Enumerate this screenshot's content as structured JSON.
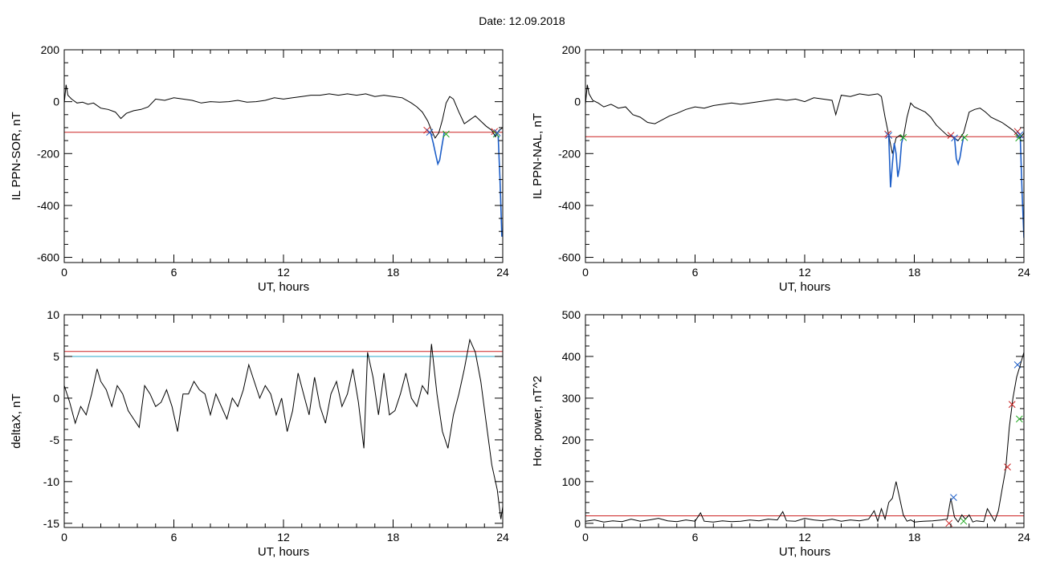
{
  "title": "Date:  12.09.2018",
  "chart_data": [
    {
      "type": "line",
      "ylabel": "IL PPN-SOR, nT",
      "xlabel": "UT, hours",
      "xlim": [
        0,
        24
      ],
      "ylim": [
        -620,
        200
      ],
      "xticks": [
        0,
        6,
        12,
        18,
        24
      ],
      "yticks": [
        200,
        0,
        -200,
        -400,
        -600
      ],
      "threshold": {
        "y": -118,
        "color": "#cc2222"
      },
      "series": [
        {
          "color": "#000000",
          "x": [
            0,
            0.1,
            0.2,
            0.4,
            0.7,
            1,
            1.3,
            1.6,
            2,
            2.4,
            2.8,
            3.1,
            3.4,
            3.8,
            4.2,
            4.6,
            5,
            5.5,
            6,
            6.5,
            7,
            7.5,
            8,
            8.5,
            9,
            9.5,
            10,
            10.5,
            11,
            11.5,
            12,
            12.5,
            13,
            13.5,
            14,
            14.5,
            15,
            15.5,
            16,
            16.5,
            17,
            17.5,
            18,
            18.5,
            19,
            19.3,
            19.6,
            19.9,
            20.1,
            20.3,
            20.5,
            20.7,
            20.9,
            21.1,
            21.3,
            21.6,
            21.9,
            22.2,
            22.5,
            22.8,
            23.1,
            23.4,
            23.6,
            23.8,
            24
          ],
          "y": [
            -5,
            65,
            25,
            10,
            -5,
            -2,
            -10,
            -5,
            -25,
            -30,
            -40,
            -65,
            -45,
            -35,
            -30,
            -20,
            10,
            5,
            15,
            10,
            5,
            -5,
            0,
            -2,
            0,
            5,
            -2,
            0,
            5,
            15,
            10,
            15,
            20,
            25,
            25,
            30,
            25,
            30,
            25,
            30,
            20,
            25,
            20,
            15,
            -5,
            -20,
            -40,
            -75,
            -110,
            -140,
            -120,
            -70,
            -5,
            20,
            10,
            -40,
            -85,
            -70,
            -55,
            -75,
            -95,
            -110,
            -135,
            -110,
            -100
          ]
        },
        {
          "color": "#1e5fc8",
          "x": [
            20.05,
            20.2,
            20.35,
            20.45,
            20.55,
            20.65,
            20.8
          ],
          "y": [
            -118,
            -160,
            -210,
            -240,
            -225,
            -180,
            -118
          ]
        },
        {
          "color": "#1e5fc8",
          "x": [
            23.75,
            23.85,
            23.95,
            24
          ],
          "y": [
            -130,
            -300,
            -520,
            -500
          ]
        }
      ],
      "markers": [
        {
          "x": 19.85,
          "y": -110,
          "color": "#cc2222"
        },
        {
          "x": 20.0,
          "y": -118,
          "color": "#1e5fc8"
        },
        {
          "x": 20.9,
          "y": -125,
          "color": "#22aa22"
        },
        {
          "x": 23.55,
          "y": -115,
          "color": "#cc2222"
        },
        {
          "x": 23.65,
          "y": -125,
          "color": "#22aa22"
        },
        {
          "x": 23.7,
          "y": -120,
          "color": "#1e5fc8"
        }
      ]
    },
    {
      "type": "line",
      "ylabel": "IL PPN-NAL, nT",
      "xlabel": "UT, hours",
      "xlim": [
        0,
        24
      ],
      "ylim": [
        -620,
        200
      ],
      "xticks": [
        0,
        6,
        12,
        18,
        24
      ],
      "yticks": [
        200,
        0,
        -200,
        -400,
        -600
      ],
      "threshold": {
        "y": -135,
        "color": "#cc2222"
      },
      "series": [
        {
          "color": "#000000",
          "x": [
            0,
            0.1,
            0.2,
            0.4,
            0.7,
            1,
            1.4,
            1.8,
            2.2,
            2.6,
            3,
            3.4,
            3.8,
            4.2,
            4.6,
            5,
            5.5,
            6,
            6.5,
            7,
            7.5,
            8,
            8.5,
            9,
            9.5,
            10,
            10.5,
            11,
            11.5,
            12,
            12.5,
            13,
            13.5,
            13.7,
            14,
            14.5,
            15,
            15.5,
            16,
            16.2,
            16.4,
            16.6,
            16.8,
            17,
            17.2,
            17.4,
            17.6,
            17.8,
            18,
            18.3,
            18.6,
            18.9,
            19.2,
            19.5,
            19.8,
            20.1,
            20.4,
            20.7,
            21,
            21.3,
            21.6,
            21.9,
            22.2,
            22.5,
            22.8,
            23.1,
            23.4,
            23.6,
            23.8,
            24
          ],
          "y": [
            -10,
            65,
            30,
            5,
            -5,
            -20,
            -10,
            -25,
            -20,
            -50,
            -60,
            -80,
            -85,
            -70,
            -55,
            -45,
            -30,
            -20,
            -25,
            -15,
            -10,
            -5,
            -10,
            -5,
            0,
            5,
            10,
            5,
            10,
            0,
            15,
            10,
            5,
            -50,
            25,
            20,
            30,
            25,
            30,
            20,
            -60,
            -130,
            -200,
            -140,
            -130,
            -140,
            -60,
            -5,
            -20,
            -30,
            -40,
            -60,
            -90,
            -110,
            -130,
            -135,
            -150,
            -120,
            -40,
            -30,
            -25,
            -40,
            -60,
            -70,
            -80,
            -95,
            -110,
            -125,
            -140,
            -120
          ]
        },
        {
          "color": "#1e5fc8",
          "x": [
            16.6,
            16.7,
            16.8,
            16.9,
            17.0,
            17.1,
            17.2,
            17.3,
            17.4
          ],
          "y": [
            -135,
            -330,
            -240,
            -160,
            -200,
            -290,
            -250,
            -160,
            -135
          ]
        },
        {
          "color": "#1e5fc8",
          "x": [
            20.2,
            20.3,
            20.4,
            20.5,
            20.6,
            20.7
          ],
          "y": [
            -135,
            -220,
            -240,
            -215,
            -170,
            -135
          ]
        },
        {
          "color": "#1e5fc8",
          "x": [
            23.8,
            23.9,
            24
          ],
          "y": [
            -140,
            -350,
            -525
          ]
        }
      ],
      "markers": [
        {
          "x": 16.55,
          "y": -125,
          "color": "#cc2222"
        },
        {
          "x": 16.6,
          "y": -130,
          "color": "#1e5fc8"
        },
        {
          "x": 17.4,
          "y": -138,
          "color": "#22aa22"
        },
        {
          "x": 20.0,
          "y": -130,
          "color": "#cc2222"
        },
        {
          "x": 20.2,
          "y": -140,
          "color": "#1e5fc8"
        },
        {
          "x": 20.75,
          "y": -138,
          "color": "#22aa22"
        },
        {
          "x": 23.65,
          "y": -115,
          "color": "#cc2222"
        },
        {
          "x": 23.72,
          "y": -140,
          "color": "#22aa22"
        },
        {
          "x": 23.78,
          "y": -128,
          "color": "#1e5fc8"
        }
      ]
    },
    {
      "type": "line",
      "ylabel": "deltaX, nT",
      "xlabel": "UT, hours",
      "xlim": [
        0,
        24
      ],
      "ylim": [
        -15.5,
        10
      ],
      "xticks": [
        0,
        6,
        12,
        18,
        24
      ],
      "yticks": [
        10,
        5,
        0,
        -5,
        -10,
        -15
      ],
      "thresholds": [
        {
          "y": 5.6,
          "color": "#cc2222"
        },
        {
          "y": 5.0,
          "color": "#2aa8c8"
        }
      ],
      "series": [
        {
          "color": "#000000",
          "x": [
            0,
            0.3,
            0.6,
            0.9,
            1.2,
            1.5,
            1.8,
            2.0,
            2.3,
            2.6,
            2.9,
            3.2,
            3.5,
            3.8,
            4.1,
            4.4,
            4.7,
            5.0,
            5.3,
            5.6,
            5.9,
            6.2,
            6.5,
            6.8,
            7.1,
            7.4,
            7.7,
            8.0,
            8.3,
            8.6,
            8.9,
            9.2,
            9.5,
            9.8,
            10.1,
            10.4,
            10.7,
            11.0,
            11.3,
            11.6,
            11.9,
            12.2,
            12.5,
            12.8,
            13.1,
            13.4,
            13.7,
            14.0,
            14.3,
            14.6,
            14.9,
            15.2,
            15.5,
            15.8,
            16.1,
            16.4,
            16.6,
            16.9,
            17.2,
            17.5,
            17.8,
            18.1,
            18.4,
            18.7,
            19.0,
            19.3,
            19.6,
            19.9,
            20.1,
            20.4,
            20.7,
            21.0,
            21.3,
            21.6,
            21.9,
            22.2,
            22.5,
            22.8,
            23.1,
            23.4,
            23.7,
            23.9,
            24
          ],
          "y": [
            1.5,
            -0.5,
            -3,
            -1,
            -2,
            0.5,
            3.5,
            2,
            1,
            -1,
            1.5,
            0.5,
            -1.5,
            -2.5,
            -3.5,
            1.5,
            0.5,
            -1,
            -0.5,
            1,
            -1,
            -4,
            0.5,
            0.5,
            2,
            1,
            0.5,
            -2,
            0.5,
            -1,
            -2.5,
            0,
            -1,
            1,
            4,
            2,
            0,
            1.5,
            0.5,
            -2,
            0,
            -4,
            -1.5,
            3,
            0.5,
            -2,
            2.5,
            -1,
            -3,
            0.5,
            2,
            -1,
            0.5,
            3.5,
            -0.5,
            -6,
            5.5,
            2.5,
            -2,
            3,
            -2,
            -1.5,
            0.5,
            3,
            0,
            -1,
            1.5,
            0.5,
            6.5,
            0.5,
            -4,
            -6,
            -2,
            0.5,
            3.5,
            7,
            5.5,
            2,
            -3,
            -8,
            -11,
            -14.5,
            -13
          ]
        }
      ]
    },
    {
      "type": "line",
      "ylabel": "Hor. power, nT^2",
      "xlabel": "UT, hours",
      "xlim": [
        0,
        24
      ],
      "ylim": [
        -10,
        500
      ],
      "xticks": [
        0,
        6,
        12,
        18,
        24
      ],
      "yticks": [
        500,
        400,
        300,
        200,
        100,
        0
      ],
      "threshold": {
        "y": 18,
        "color": "#cc2222"
      },
      "series": [
        {
          "color": "#000000",
          "x": [
            0,
            0.5,
            1,
            1.5,
            2,
            2.5,
            3,
            3.5,
            4,
            4.5,
            5,
            5.5,
            6,
            6.3,
            6.5,
            7,
            7.5,
            8,
            8.5,
            9,
            9.5,
            10,
            10.5,
            10.8,
            11,
            11.5,
            12,
            12.5,
            13,
            13.5,
            14,
            14.5,
            15,
            15.5,
            15.8,
            16,
            16.2,
            16.4,
            16.6,
            16.8,
            17,
            17.2,
            17.4,
            17.6,
            17.8,
            18,
            18.5,
            19,
            19.5,
            19.8,
            20,
            20.2,
            20.4,
            20.6,
            20.8,
            21,
            21.2,
            21.4,
            21.6,
            21.8,
            22,
            22.2,
            22.4,
            22.6,
            22.8,
            23,
            23.2,
            23.4,
            23.6,
            23.8,
            24
          ],
          "y": [
            5,
            8,
            3,
            6,
            4,
            10,
            5,
            8,
            12,
            6,
            4,
            8,
            5,
            25,
            5,
            3,
            6,
            4,
            5,
            8,
            6,
            10,
            8,
            28,
            6,
            5,
            12,
            8,
            6,
            10,
            5,
            8,
            6,
            10,
            30,
            5,
            35,
            10,
            50,
            60,
            100,
            60,
            20,
            5,
            8,
            3,
            5,
            6,
            8,
            10,
            60,
            15,
            3,
            20,
            10,
            20,
            3,
            6,
            5,
            4,
            35,
            20,
            5,
            30,
            80,
            130,
            230,
            300,
            350,
            380,
            410
          ]
        }
      ],
      "markers": [
        {
          "x": 20.15,
          "y": 62,
          "color": "#1e5fc8"
        },
        {
          "x": 19.9,
          "y": 0,
          "color": "#cc2222"
        },
        {
          "x": 20.7,
          "y": 5,
          "color": "#22aa22"
        },
        {
          "x": 23.1,
          "y": 135,
          "color": "#cc2222"
        },
        {
          "x": 23.35,
          "y": 285,
          "color": "#cc2222"
        },
        {
          "x": 23.65,
          "y": 380,
          "color": "#1e5fc8"
        },
        {
          "x": 23.75,
          "y": 250,
          "color": "#22aa22"
        }
      ]
    }
  ]
}
